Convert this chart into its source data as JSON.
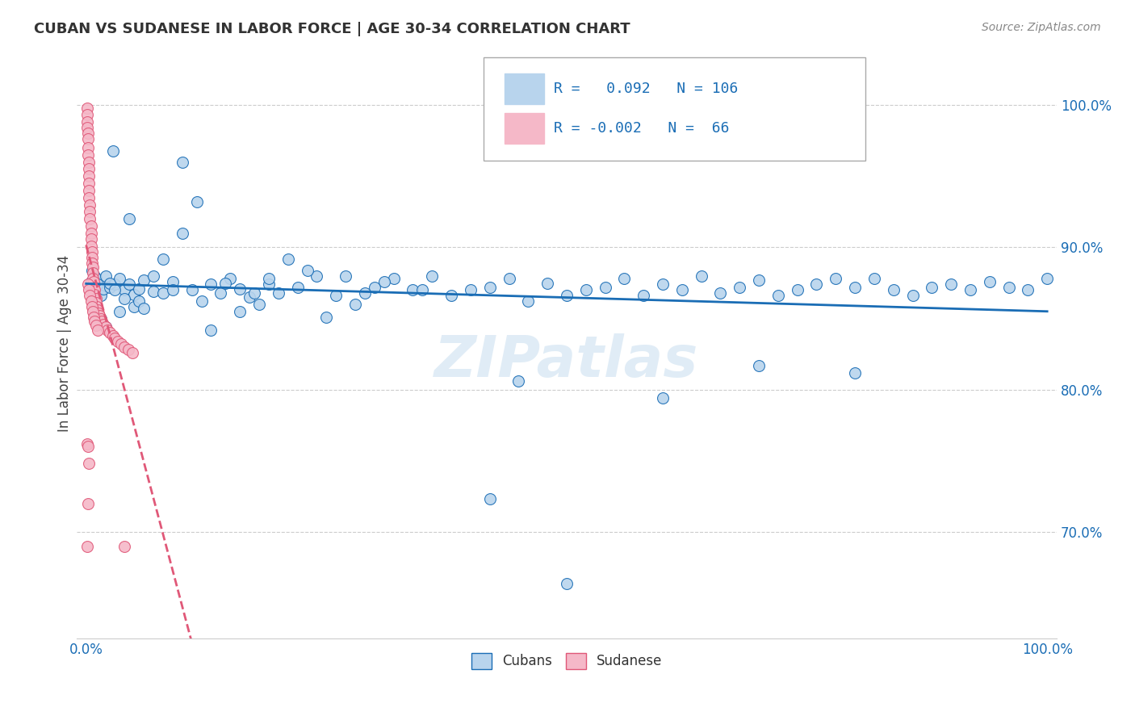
{
  "title": "CUBAN VS SUDANESE IN LABOR FORCE | AGE 30-34 CORRELATION CHART",
  "source_text": "Source: ZipAtlas.com",
  "ylabel": "In Labor Force | Age 30-34",
  "xlim": [
    -0.01,
    1.01
  ],
  "ylim": [
    0.625,
    1.04
  ],
  "yticks": [
    0.7,
    0.8,
    0.9,
    1.0
  ],
  "ytick_labels": [
    "70.0%",
    "80.0%",
    "90.0%",
    "100.0%"
  ],
  "xticks": [
    0.0,
    1.0
  ],
  "xtick_labels": [
    "0.0%",
    "100.0%"
  ],
  "cubans_color": "#b8d4ed",
  "sudanese_color": "#f5b8c8",
  "trendline_cubans_color": "#1a6db5",
  "trendline_sudanese_color": "#e05878",
  "background_color": "#ffffff",
  "watermark": "ZIPatlas",
  "cubans_x": [
    0.005,
    0.006,
    0.007,
    0.008,
    0.009,
    0.01,
    0.012,
    0.015,
    0.018,
    0.02,
    0.025,
    0.028,
    0.03,
    0.035,
    0.04,
    0.045,
    0.05,
    0.055,
    0.06,
    0.07,
    0.08,
    0.09,
    0.1,
    0.11,
    0.12,
    0.13,
    0.14,
    0.15,
    0.16,
    0.17,
    0.18,
    0.19,
    0.2,
    0.22,
    0.24,
    0.26,
    0.28,
    0.3,
    0.32,
    0.34,
    0.36,
    0.38,
    0.4,
    0.42,
    0.44,
    0.46,
    0.48,
    0.5,
    0.52,
    0.54,
    0.56,
    0.58,
    0.6,
    0.62,
    0.64,
    0.66,
    0.68,
    0.7,
    0.72,
    0.74,
    0.76,
    0.78,
    0.8,
    0.82,
    0.84,
    0.86,
    0.88,
    0.9,
    0.92,
    0.94,
    0.96,
    0.98,
    1.0,
    0.015,
    0.02,
    0.025,
    0.03,
    0.035,
    0.04,
    0.045,
    0.05,
    0.055,
    0.06,
    0.07,
    0.08,
    0.09,
    0.1,
    0.115,
    0.13,
    0.145,
    0.16,
    0.175,
    0.19,
    0.21,
    0.25,
    0.29,
    0.35,
    0.42,
    0.5,
    0.6,
    0.7,
    0.8,
    0.23,
    0.27,
    0.31,
    0.45
  ],
  "cubans_y": [
    0.876,
    0.884,
    0.872,
    0.869,
    0.88,
    0.878,
    0.874,
    0.866,
    0.871,
    0.88,
    0.872,
    0.968,
    0.874,
    0.878,
    0.87,
    0.874,
    0.867,
    0.871,
    0.877,
    0.869,
    0.868,
    0.876,
    0.96,
    0.87,
    0.862,
    0.874,
    0.868,
    0.878,
    0.871,
    0.865,
    0.86,
    0.874,
    0.868,
    0.872,
    0.88,
    0.866,
    0.86,
    0.872,
    0.878,
    0.87,
    0.88,
    0.866,
    0.87,
    0.872,
    0.878,
    0.862,
    0.875,
    0.866,
    0.87,
    0.872,
    0.878,
    0.866,
    0.874,
    0.87,
    0.88,
    0.868,
    0.872,
    0.877,
    0.866,
    0.87,
    0.874,
    0.878,
    0.872,
    0.878,
    0.87,
    0.866,
    0.872,
    0.874,
    0.87,
    0.876,
    0.872,
    0.87,
    0.878,
    0.85,
    0.844,
    0.875,
    0.87,
    0.855,
    0.864,
    0.92,
    0.858,
    0.862,
    0.857,
    0.88,
    0.892,
    0.87,
    0.91,
    0.932,
    0.842,
    0.875,
    0.855,
    0.868,
    0.878,
    0.892,
    0.851,
    0.868,
    0.87,
    0.723,
    0.664,
    0.794,
    0.817,
    0.812,
    0.884,
    0.88,
    0.876,
    0.806
  ],
  "sudanese_x": [
    0.001,
    0.001,
    0.001,
    0.001,
    0.002,
    0.002,
    0.002,
    0.002,
    0.003,
    0.003,
    0.003,
    0.003,
    0.003,
    0.003,
    0.004,
    0.004,
    0.004,
    0.005,
    0.005,
    0.005,
    0.005,
    0.006,
    0.006,
    0.006,
    0.007,
    0.007,
    0.007,
    0.008,
    0.008,
    0.009,
    0.009,
    0.01,
    0.01,
    0.011,
    0.012,
    0.013,
    0.014,
    0.015,
    0.016,
    0.018,
    0.02,
    0.022,
    0.025,
    0.028,
    0.03,
    0.033,
    0.036,
    0.04,
    0.044,
    0.048,
    0.002,
    0.003,
    0.004,
    0.005,
    0.006,
    0.007,
    0.008,
    0.009,
    0.01,
    0.012,
    0.001,
    0.002,
    0.003,
    0.001,
    0.002,
    0.04
  ],
  "sudanese_y": [
    0.998,
    0.993,
    0.988,
    0.984,
    0.98,
    0.976,
    0.97,
    0.965,
    0.96,
    0.955,
    0.95,
    0.945,
    0.94,
    0.935,
    0.93,
    0.925,
    0.92,
    0.915,
    0.91,
    0.906,
    0.901,
    0.897,
    0.893,
    0.889,
    0.886,
    0.882,
    0.878,
    0.876,
    0.872,
    0.87,
    0.867,
    0.864,
    0.861,
    0.858,
    0.856,
    0.854,
    0.852,
    0.85,
    0.848,
    0.846,
    0.844,
    0.842,
    0.84,
    0.838,
    0.836,
    0.834,
    0.832,
    0.83,
    0.828,
    0.826,
    0.874,
    0.87,
    0.866,
    0.862,
    0.858,
    0.855,
    0.851,
    0.848,
    0.845,
    0.842,
    0.762,
    0.76,
    0.748,
    0.69,
    0.72,
    0.69
  ]
}
